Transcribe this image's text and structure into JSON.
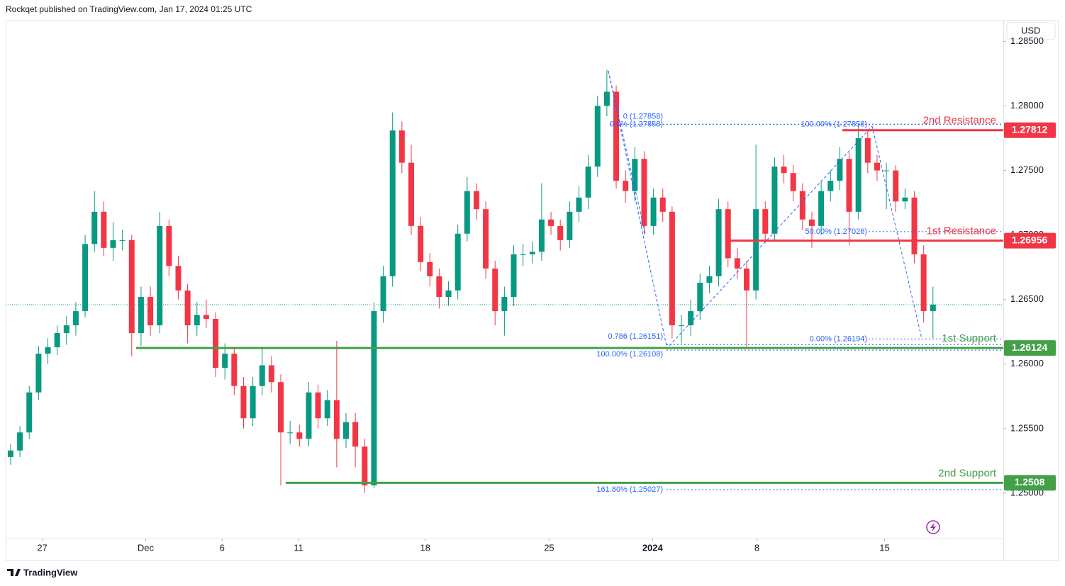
{
  "header": "Rockqet published on TradingView.com, Jan 17, 2024 01:25 UTC",
  "currency": "USD",
  "footer": "TradingView",
  "chart_data": {
    "type": "candlestick",
    "up_color": "#089981",
    "down_color": "#f23645",
    "xlim": [
      -0.53,
      106.55
    ],
    "xticks": [
      {
        "value": 3.4,
        "label": "27"
      },
      {
        "value": 14.5,
        "label": "Dec"
      },
      {
        "value": 22.7,
        "label": "6"
      },
      {
        "value": 30.9,
        "label": "11"
      },
      {
        "value": 44.5,
        "label": "18"
      },
      {
        "value": 57.8,
        "label": "25"
      },
      {
        "value": 68.9,
        "label": "2024"
      },
      {
        "value": 80.1,
        "label": "8"
      },
      {
        "value": 93.8,
        "label": "15"
      }
    ],
    "ylim": [
      1.24648,
      1.28667
    ],
    "yticks": [
      {
        "value": 1.25,
        "label": "1.25000"
      },
      {
        "value": 1.255,
        "label": "1.25500"
      },
      {
        "value": 1.26,
        "label": "1.26000"
      },
      {
        "value": 1.265,
        "label": "1.26500"
      },
      {
        "value": 1.27,
        "label": "1.27000"
      },
      {
        "value": 1.275,
        "label": "1.27500"
      },
      {
        "value": 1.28,
        "label": "1.28000"
      },
      {
        "value": 1.285,
        "label": "1.28500"
      }
    ],
    "ohlc": [
      [
        1.2528,
        1.2538,
        1.2522,
        1.2533
      ],
      [
        1.2533,
        1.2552,
        1.2528,
        1.2547
      ],
      [
        1.2547,
        1.2583,
        1.2542,
        1.2578
      ],
      [
        1.2578,
        1.2614,
        1.2572,
        1.2608
      ],
      [
        1.2608,
        1.262,
        1.26,
        1.2613
      ],
      [
        1.2613,
        1.263,
        1.2607,
        1.2624
      ],
      [
        1.2624,
        1.2637,
        1.2615,
        1.263
      ],
      [
        1.263,
        1.2648,
        1.2622,
        1.2641
      ],
      [
        1.2641,
        1.27,
        1.2636,
        1.2693
      ],
      [
        1.2693,
        1.2734,
        1.2687,
        1.2718
      ],
      [
        1.2718,
        1.2726,
        1.2684,
        1.269
      ],
      [
        1.269,
        1.271,
        1.268,
        1.2696
      ],
      [
        1.2696,
        1.2704,
        1.2688,
        1.2696
      ],
      [
        1.2696,
        1.27,
        1.2606,
        1.2624
      ],
      [
        1.2624,
        1.266,
        1.2614,
        1.2652
      ],
      [
        1.2652,
        1.266,
        1.2622,
        1.263
      ],
      [
        1.263,
        1.2718,
        1.2624,
        1.2707
      ],
      [
        1.2707,
        1.2712,
        1.2668,
        1.2676
      ],
      [
        1.2676,
        1.2684,
        1.265,
        1.2657
      ],
      [
        1.2657,
        1.2662,
        1.2616,
        1.263
      ],
      [
        1.263,
        1.2648,
        1.2622,
        1.2638
      ],
      [
        1.2638,
        1.265,
        1.2628,
        1.2635
      ],
      [
        1.2635,
        1.264,
        1.259,
        1.2597
      ],
      [
        1.2597,
        1.2616,
        1.2588,
        1.2608
      ],
      [
        1.2608,
        1.2612,
        1.2576,
        1.2583
      ],
      [
        1.2583,
        1.259,
        1.255,
        1.2558
      ],
      [
        1.2558,
        1.259,
        1.2552,
        1.2583
      ],
      [
        1.2583,
        1.2612,
        1.2576,
        1.2599
      ],
      [
        1.2599,
        1.2606,
        1.2578,
        1.2586
      ],
      [
        1.2586,
        1.2592,
        1.2506,
        1.2547
      ],
      [
        1.2547,
        1.2556,
        1.2538,
        1.2547
      ],
      [
        1.2547,
        1.2553,
        1.2536,
        1.2542
      ],
      [
        1.2542,
        1.2586,
        1.2536,
        1.2578
      ],
      [
        1.2578,
        1.2584,
        1.255,
        1.2558
      ],
      [
        1.2558,
        1.258,
        1.2552,
        1.2572
      ],
      [
        1.2572,
        1.2618,
        1.252,
        1.2542
      ],
      [
        1.2542,
        1.2562,
        1.2535,
        1.2555
      ],
      [
        1.2555,
        1.2562,
        1.252,
        1.2536
      ],
      [
        1.2536,
        1.2542,
        1.25,
        1.2506
      ],
      [
        1.2506,
        1.2648,
        1.2504,
        1.2641
      ],
      [
        1.2641,
        1.2676,
        1.2632,
        1.2668
      ],
      [
        1.2668,
        1.2795,
        1.266,
        1.2781
      ],
      [
        1.2781,
        1.2788,
        1.2748,
        1.2756
      ],
      [
        1.2756,
        1.277,
        1.27,
        1.2707
      ],
      [
        1.2707,
        1.2714,
        1.2672,
        1.2679
      ],
      [
        1.2679,
        1.2686,
        1.266,
        1.2668
      ],
      [
        1.2668,
        1.2674,
        1.2643,
        1.2652
      ],
      [
        1.2652,
        1.2664,
        1.2645,
        1.2657
      ],
      [
        1.2657,
        1.2708,
        1.265,
        1.2701
      ],
      [
        1.2701,
        1.2745,
        1.2695,
        1.2734
      ],
      [
        1.2734,
        1.274,
        1.2712,
        1.272
      ],
      [
        1.272,
        1.2726,
        1.2666,
        1.2674
      ],
      [
        1.2674,
        1.268,
        1.263,
        1.2641
      ],
      [
        1.2641,
        1.266,
        1.2622,
        1.2652
      ],
      [
        1.2652,
        1.2692,
        1.2645,
        1.2685
      ],
      [
        1.2685,
        1.2693,
        1.2676,
        1.2685
      ],
      [
        1.2685,
        1.2695,
        1.2678,
        1.2687
      ],
      [
        1.2687,
        1.274,
        1.268,
        1.2712
      ],
      [
        1.2712,
        1.2718,
        1.27,
        1.2707
      ],
      [
        1.2707,
        1.2712,
        1.2688,
        1.2696
      ],
      [
        1.2696,
        1.2726,
        1.269,
        1.2718
      ],
      [
        1.2718,
        1.2738,
        1.271,
        1.2729
      ],
      [
        1.2729,
        1.2762,
        1.272,
        1.2753
      ],
      [
        1.2753,
        1.2808,
        1.2745,
        1.28
      ],
      [
        1.28,
        1.2828,
        1.2792,
        1.2811
      ],
      [
        1.2811,
        1.2816,
        1.2736,
        1.2742
      ],
      [
        1.2742,
        1.275,
        1.2725,
        1.2734
      ],
      [
        1.2734,
        1.2768,
        1.2726,
        1.2759
      ],
      [
        1.2759,
        1.2765,
        1.27,
        1.2707
      ],
      [
        1.2707,
        1.2736,
        1.27,
        1.2729
      ],
      [
        1.2729,
        1.2736,
        1.271,
        1.2718
      ],
      [
        1.2718,
        1.2722,
        1.262,
        1.263
      ],
      [
        1.263,
        1.2638,
        1.2616,
        1.263
      ],
      [
        1.263,
        1.265,
        1.2622,
        1.2641
      ],
      [
        1.2641,
        1.267,
        1.2634,
        1.2663
      ],
      [
        1.2663,
        1.2676,
        1.2655,
        1.2668
      ],
      [
        1.2668,
        1.2728,
        1.266,
        1.272
      ],
      [
        1.272,
        1.2726,
        1.2675,
        1.2682
      ],
      [
        1.2682,
        1.269,
        1.2666,
        1.2674
      ],
      [
        1.2674,
        1.268,
        1.2612,
        1.2657
      ],
      [
        1.2657,
        1.277,
        1.265,
        1.272
      ],
      [
        1.272,
        1.2726,
        1.2694,
        1.2701
      ],
      [
        1.2701,
        1.276,
        1.2695,
        1.2753
      ],
      [
        1.2753,
        1.2762,
        1.274,
        1.2748
      ],
      [
        1.2748,
        1.2754,
        1.2726,
        1.2734
      ],
      [
        1.2734,
        1.274,
        1.2704,
        1.2712
      ],
      [
        1.2712,
        1.2718,
        1.269,
        1.2707
      ],
      [
        1.2707,
        1.2742,
        1.27,
        1.2734
      ],
      [
        1.2734,
        1.275,
        1.2726,
        1.2742
      ],
      [
        1.2742,
        1.2768,
        1.2735,
        1.2759
      ],
      [
        1.2759,
        1.2764,
        1.2692,
        1.2718
      ],
      [
        1.2718,
        1.2785,
        1.2712,
        1.2775
      ],
      [
        1.2775,
        1.2782,
        1.2748,
        1.2756
      ],
      [
        1.2756,
        1.2762,
        1.2742,
        1.275
      ],
      [
        1.275,
        1.2756,
        1.272,
        1.275
      ],
      [
        1.275,
        1.2754,
        1.2718,
        1.2726
      ],
      [
        1.2726,
        1.2736,
        1.272,
        1.2729
      ],
      [
        1.2729,
        1.2734,
        1.2678,
        1.2685
      ],
      [
        1.2685,
        1.2692,
        1.2632,
        1.2641
      ],
      [
        1.2641,
        1.266,
        1.262,
        1.2646
      ]
    ],
    "levels": [
      {
        "label": "2nd Resistance",
        "value": 1.27812,
        "color": "#f23645"
      },
      {
        "label": "1st Resistance",
        "value": 1.26956,
        "color": "#f23645"
      },
      {
        "label": "1st Support",
        "value": 1.26124,
        "color": "#43a047"
      },
      {
        "label": "2nd Support",
        "value": 1.2508,
        "color": "#43a047"
      }
    ],
    "fib_color": "#2962ff",
    "fib_levels": [
      {
        "label": "0 (1.27858)",
        "value": 1.27858
      },
      {
        "label": "0.0% (1.27858)",
        "value": 1.27858
      },
      {
        "label": "0.786 (1.26151)",
        "value": 1.26151
      },
      {
        "label": "100.00% (1.26108)",
        "value": 1.26108
      },
      {
        "label": "161.80% (1.25027)",
        "value": 1.25027
      },
      {
        "label": "100.00% (1.27858)",
        "value": 1.27858
      },
      {
        "label": "50.00% (1.27026)",
        "value": 1.27026
      },
      {
        "label": "0.00% (1.26194)",
        "value": 1.26194
      }
    ]
  }
}
